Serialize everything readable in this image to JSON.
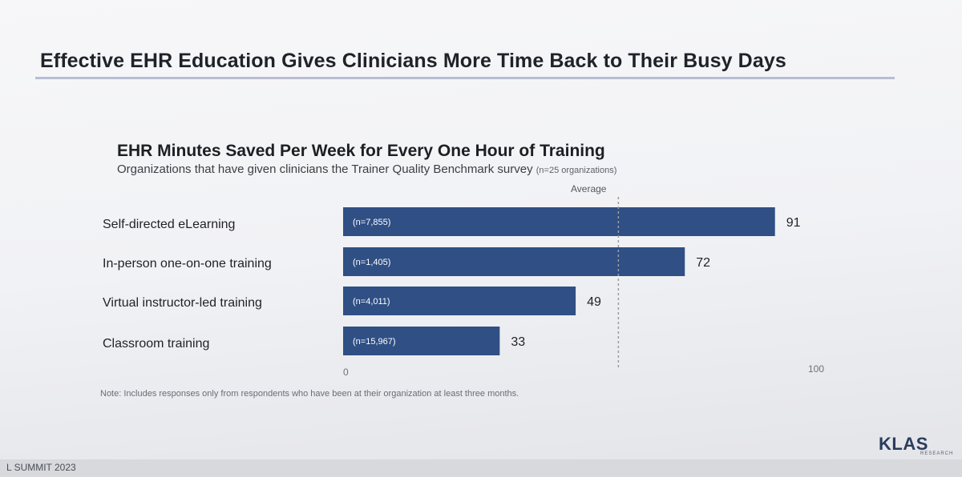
{
  "slide": {
    "title": "Effective EHR Education Gives Clinicians More Time Back to Their Busy Days",
    "note": "Note: Includes responses only from respondents who have been at their organization at least three months.",
    "footer": "L SUMMIT 2023",
    "logo": "KLAS",
    "logo_sub": "RESEARCH"
  },
  "colors": {
    "bar": "#2f4f85",
    "average_line": "#9a9da4"
  },
  "chart_data": {
    "type": "bar",
    "orientation": "horizontal",
    "title": "EHR Minutes Saved Per Week for Every One Hour of Training",
    "subtitle": "Organizations that have given clinicians the Trainer Quality Benchmark survey",
    "subtitle_note": "(n=25 organizations)",
    "categories": [
      "Self-directed eLearning",
      "In-person one-on-one training",
      "Virtual instructor-led training",
      "Classroom training"
    ],
    "values": [
      91,
      72,
      49,
      33
    ],
    "sample_sizes": [
      "(n=7,855)",
      "(n=1,405)",
      "(n=4,011)",
      "(n=15,967)"
    ],
    "xlim": [
      0,
      100
    ],
    "x_ticks": [
      "0",
      "100"
    ],
    "average_label": "Average",
    "average_value": 58,
    "grid": false
  }
}
